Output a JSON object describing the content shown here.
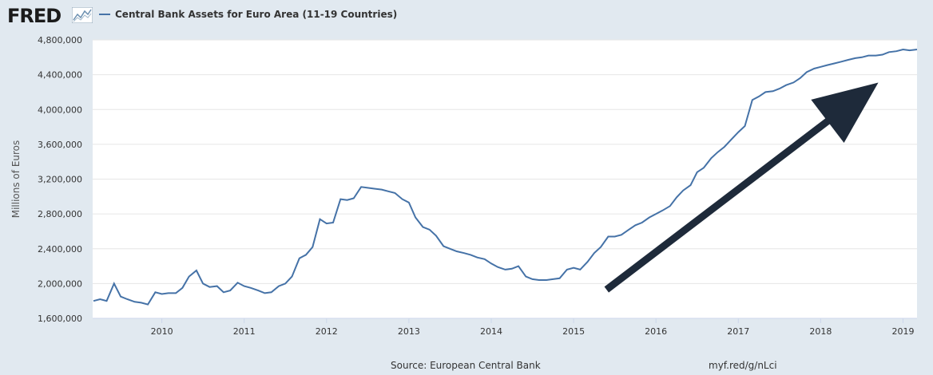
{
  "header": {
    "logo_text": "FRED",
    "logo_icon": "trend-chart-icon",
    "legend_label": "Central Bank Assets for Euro Area (11-19 Countries)"
  },
  "footer": {
    "source": "Source: European Central Bank",
    "short_link": "myf.red/g/nLci"
  },
  "colors": {
    "line": "#4572a7",
    "arrow": "#1e2a3a",
    "background": "#e1e9f0",
    "plot_background": "#ffffff",
    "gridline": "#e6e6e6"
  },
  "chart_data": {
    "type": "line",
    "title": "",
    "xlabel": "",
    "ylabel": "Millions of Euros",
    "ylim": [
      1600000,
      4800000
    ],
    "yticks": [
      1600000,
      2000000,
      2400000,
      2800000,
      3200000,
      3600000,
      4000000,
      4400000,
      4800000
    ],
    "ytick_labels": [
      "1,600,000",
      "2,000,000",
      "2,400,000",
      "2,800,000",
      "3,200,000",
      "3,600,000",
      "4,000,000",
      "4,400,000",
      "4,800,000"
    ],
    "xlim": [
      2009.16,
      2019.17
    ],
    "xticks": [
      2010,
      2011,
      2012,
      2013,
      2014,
      2015,
      2016,
      2017,
      2018,
      2019
    ],
    "xtick_labels": [
      "2010",
      "2011",
      "2012",
      "2013",
      "2014",
      "2015",
      "2016",
      "2017",
      "2018",
      "2019"
    ],
    "grid": true,
    "legend_position": "top",
    "annotation": {
      "type": "arrow",
      "from": [
        2015.4,
        1930000
      ],
      "to": [
        2018.7,
        4310000
      ]
    },
    "series": [
      {
        "name": "Central Bank Assets for Euro Area (11-19 Countries)",
        "x": [
          2009.17,
          2009.25,
          2009.33,
          2009.42,
          2009.5,
          2009.58,
          2009.67,
          2009.75,
          2009.83,
          2009.92,
          2010.0,
          2010.08,
          2010.17,
          2010.25,
          2010.33,
          2010.42,
          2010.5,
          2010.58,
          2010.67,
          2010.75,
          2010.83,
          2010.92,
          2011.0,
          2011.08,
          2011.17,
          2011.25,
          2011.33,
          2011.42,
          2011.5,
          2011.58,
          2011.67,
          2011.75,
          2011.83,
          2011.92,
          2012.0,
          2012.08,
          2012.17,
          2012.25,
          2012.33,
          2012.42,
          2012.5,
          2012.58,
          2012.67,
          2012.75,
          2012.83,
          2012.92,
          2013.0,
          2013.08,
          2013.17,
          2013.25,
          2013.33,
          2013.42,
          2013.5,
          2013.58,
          2013.67,
          2013.75,
          2013.83,
          2013.92,
          2014.0,
          2014.08,
          2014.17,
          2014.25,
          2014.33,
          2014.42,
          2014.5,
          2014.58,
          2014.67,
          2014.75,
          2014.83,
          2014.92,
          2015.0,
          2015.08,
          2015.17,
          2015.25,
          2015.33,
          2015.42,
          2015.5,
          2015.58,
          2015.67,
          2015.75,
          2015.83,
          2015.92,
          2016.0,
          2016.08,
          2016.17,
          2016.25,
          2016.33,
          2016.42,
          2016.5,
          2016.58,
          2016.67,
          2016.75,
          2016.83,
          2016.92,
          2017.0,
          2017.08,
          2017.17,
          2017.25,
          2017.33,
          2017.42,
          2017.5,
          2017.58,
          2017.67,
          2017.75,
          2017.83,
          2017.92,
          2018.0,
          2018.08,
          2018.17,
          2018.25,
          2018.33,
          2018.42,
          2018.5,
          2018.58,
          2018.67,
          2018.75,
          2018.83,
          2018.92,
          2019.0,
          2019.08,
          2019.17
        ],
        "values": [
          1800000,
          1820000,
          1800000,
          2000000,
          1850000,
          1820000,
          1790000,
          1780000,
          1760000,
          1900000,
          1880000,
          1890000,
          1890000,
          1950000,
          2080000,
          2150000,
          2000000,
          1960000,
          1970000,
          1900000,
          1920000,
          2010000,
          1970000,
          1950000,
          1920000,
          1890000,
          1900000,
          1970000,
          2000000,
          2080000,
          2290000,
          2330000,
          2420000,
          2740000,
          2690000,
          2700000,
          2970000,
          2960000,
          2980000,
          3110000,
          3100000,
          3090000,
          3080000,
          3060000,
          3040000,
          2970000,
          2930000,
          2760000,
          2650000,
          2620000,
          2550000,
          2430000,
          2400000,
          2370000,
          2350000,
          2330000,
          2300000,
          2280000,
          2230000,
          2190000,
          2160000,
          2170000,
          2200000,
          2080000,
          2050000,
          2040000,
          2040000,
          2050000,
          2060000,
          2160000,
          2180000,
          2160000,
          2250000,
          2350000,
          2420000,
          2540000,
          2540000,
          2560000,
          2620000,
          2670000,
          2700000,
          2760000,
          2800000,
          2840000,
          2890000,
          2990000,
          3070000,
          3130000,
          3280000,
          3330000,
          3440000,
          3510000,
          3570000,
          3660000,
          3740000,
          3810000,
          4110000,
          4150000,
          4200000,
          4210000,
          4240000,
          4280000,
          4310000,
          4360000,
          4430000,
          4470000,
          4490000,
          4510000,
          4530000,
          4550000,
          4570000,
          4590000,
          4600000,
          4620000,
          4620000,
          4630000,
          4660000,
          4670000,
          4690000,
          4680000,
          4690000
        ]
      }
    ]
  }
}
